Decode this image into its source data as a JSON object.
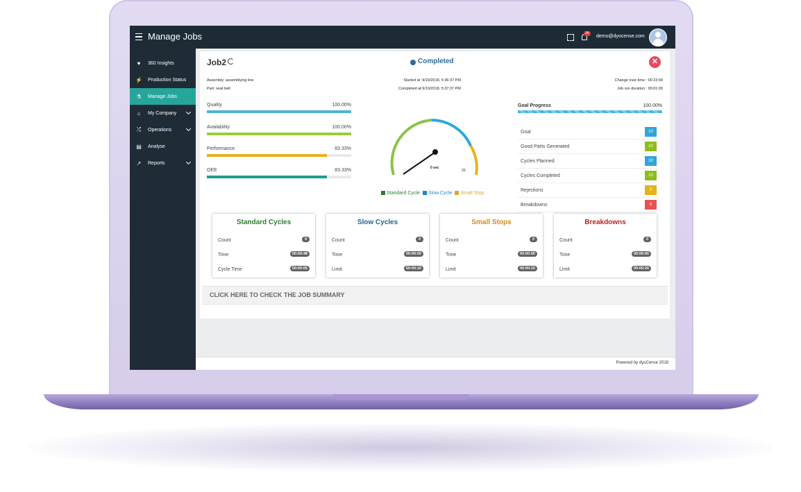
{
  "app": {
    "title": "Manage Jobs",
    "notification_count": "34",
    "user_email": "demo@dyocense.com",
    "footer": "Powered by dyoCense 2018"
  },
  "sidebar": {
    "items": [
      {
        "label": "360 Insights",
        "icon": "heart-icon",
        "glyph": "♥",
        "active": false
      },
      {
        "label": "Production Status",
        "icon": "bolt-icon",
        "glyph": "⚡",
        "active": false
      },
      {
        "label": "Manage Jobs",
        "icon": "flask-icon",
        "glyph": "⚗",
        "active": true
      },
      {
        "label": "My Company",
        "icon": "home-icon",
        "glyph": "⌂",
        "active": false,
        "expandable": true
      },
      {
        "label": "Operations",
        "icon": "shuffle-icon",
        "glyph": "⤮",
        "active": false,
        "expandable": true
      },
      {
        "label": "Analyse",
        "icon": "document-icon",
        "glyph": "▤",
        "active": false
      },
      {
        "label": "Reports",
        "icon": "chart-line-icon",
        "glyph": "↗",
        "active": false,
        "expandable": true
      }
    ]
  },
  "job": {
    "title": "Job2",
    "status": "Completed",
    "assembly": "Assembly: assemblying line",
    "part": "Part: seat belt",
    "started": "Started at :9/19/2018, 5:36:37 PM",
    "completed": "Completed at:9/19/2018, 5:37:37 PM",
    "changeover": "Change over time : 00:23:00",
    "run_duration": "Job run duration : 00:01:00"
  },
  "metrics": [
    {
      "label": "Quality",
      "value": "100.00%",
      "percent": 100,
      "color": "#4bb3d9"
    },
    {
      "label": "Availability",
      "value": "100.00%",
      "percent": 100,
      "color": "#9ccc3a"
    },
    {
      "label": "Performance",
      "value": "83.33%",
      "percent": 83.33,
      "color": "#e6b21c"
    },
    {
      "label": "OEE",
      "value": "83.33%",
      "percent": 83.33,
      "color": "#1f9c8c"
    }
  ],
  "gauge": {
    "center_label": "0 sec",
    "max_label": "20",
    "legend": [
      {
        "label": "Standard Cycle",
        "color": "#2e7d32"
      },
      {
        "label": "Slow Cycle",
        "color": "#1e88c8"
      },
      {
        "label": "Small Stop",
        "color": "#d9a826"
      }
    ]
  },
  "goal": {
    "label": "Goal Progress",
    "value": "100.00%"
  },
  "counts": [
    {
      "label": "Goal",
      "value": "10",
      "color": "#2fa6d6"
    },
    {
      "label": "Good Parts Generated",
      "value": "10",
      "color": "#8dbd1c"
    },
    {
      "label": "Cycles Planned",
      "value": "10",
      "color": "#2fa6d6"
    },
    {
      "label": "Cycles Completed",
      "value": "10",
      "color": "#8dbd1c"
    },
    {
      "label": "Rejections",
      "value": "0",
      "color": "#e4b21a"
    },
    {
      "label": "Breakdowns",
      "value": "0",
      "color": "#e85252"
    }
  ],
  "cards": [
    {
      "title": "Standard Cycles",
      "color": "#2e7d32",
      "rows": [
        {
          "label": "Count",
          "value": "9"
        },
        {
          "label": "Time",
          "value": "00:00:48"
        },
        {
          "label": "Cycle Time",
          "value": "00:00:05"
        }
      ]
    },
    {
      "title": "Slow Cycles",
      "color": "#23658f",
      "rows": [
        {
          "label": "Count",
          "value": "0"
        },
        {
          "label": "Time",
          "value": "00:00:00"
        },
        {
          "label": "Limit",
          "value": "00:00:10"
        }
      ]
    },
    {
      "title": "Small Stops",
      "color": "#d18b17",
      "rows": [
        {
          "label": "Count",
          "value": "0"
        },
        {
          "label": "Time",
          "value": "00:00:00"
        },
        {
          "label": "Limit",
          "value": "00:00:15"
        }
      ]
    },
    {
      "title": "Breakdowns",
      "color": "#b3261e",
      "rows": [
        {
          "label": "Count",
          "value": "0"
        },
        {
          "label": "Time",
          "value": "00:00:00"
        },
        {
          "label": "Limit",
          "value": "00:00:20"
        }
      ]
    }
  ],
  "summary_link": "CLICK HERE TO CHECK THE JOB SUMMARY"
}
